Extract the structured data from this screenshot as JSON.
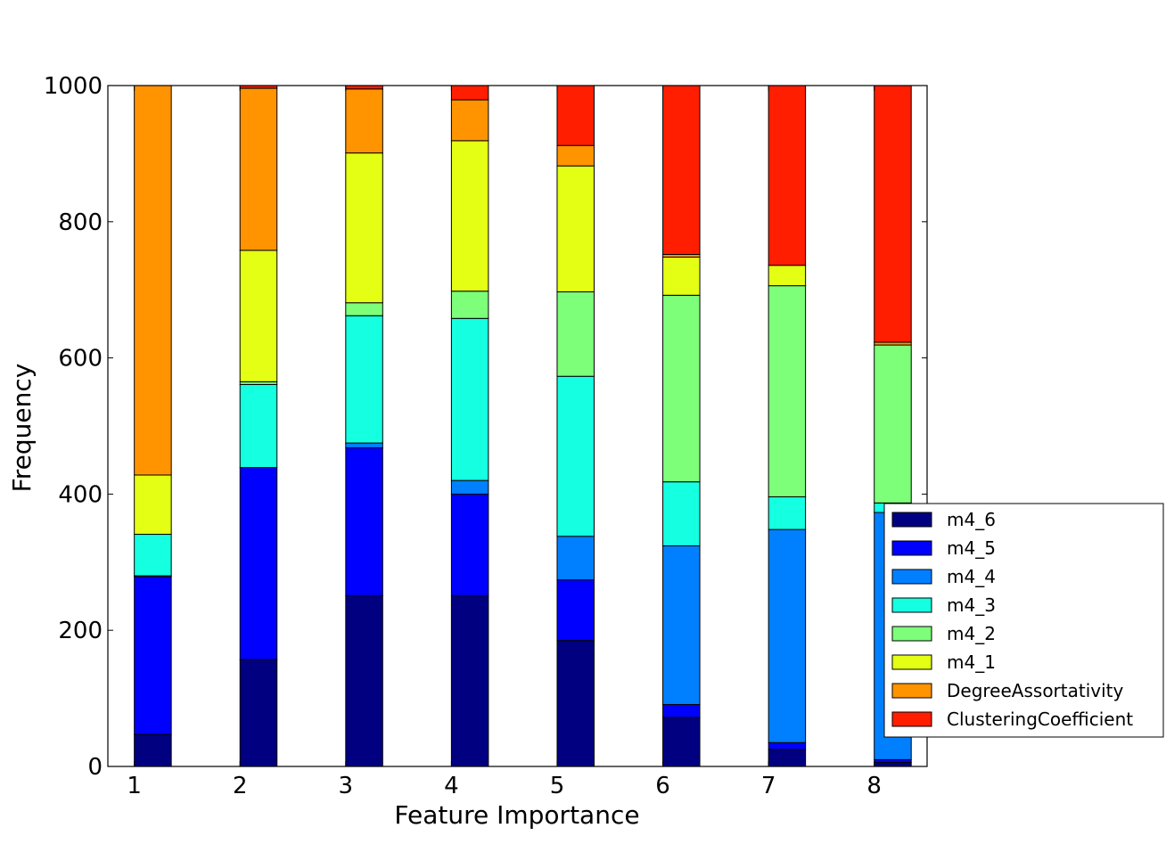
{
  "chart_data": {
    "type": "bar",
    "stacked": true,
    "title": "",
    "xlabel": "Feature Importance",
    "ylabel": "Frequency",
    "categories": [
      "1",
      "2",
      "3",
      "4",
      "5",
      "6",
      "7",
      "8"
    ],
    "ylim": [
      0,
      1000
    ],
    "yticks": [
      0,
      200,
      400,
      600,
      800,
      1000
    ],
    "grid": false,
    "legend_position": "lower-right, outside plot",
    "series": [
      {
        "name": "m4_6",
        "color": "#000080",
        "values": [
          47,
          157,
          251,
          251,
          185,
          72,
          25,
          6
        ]
      },
      {
        "name": "m4_5",
        "color": "#0000ff",
        "values": [
          232,
          282,
          217,
          149,
          89,
          19,
          10,
          4
        ]
      },
      {
        "name": "m4_4",
        "color": "#0080ff",
        "values": [
          1,
          0,
          7,
          20,
          64,
          233,
          313,
          363
        ]
      },
      {
        "name": "m4_3",
        "color": "#15ffe1",
        "values": [
          61,
          122,
          187,
          238,
          235,
          94,
          48,
          14
        ]
      },
      {
        "name": "m4_2",
        "color": "#7dff7a",
        "values": [
          0,
          4,
          19,
          40,
          124,
          274,
          310,
          232
        ]
      },
      {
        "name": "m4_1",
        "color": "#e4ff13",
        "values": [
          87,
          193,
          220,
          221,
          185,
          56,
          30,
          0
        ]
      },
      {
        "name": "DegreeAssortativity",
        "color": "#ff9400",
        "values": [
          572,
          238,
          94,
          60,
          30,
          4,
          0,
          4
        ]
      },
      {
        "name": "ClusteringCoefficient",
        "color": "#ff1e00",
        "values": [
          0,
          4,
          5,
          21,
          88,
          248,
          264,
          377
        ]
      }
    ]
  }
}
